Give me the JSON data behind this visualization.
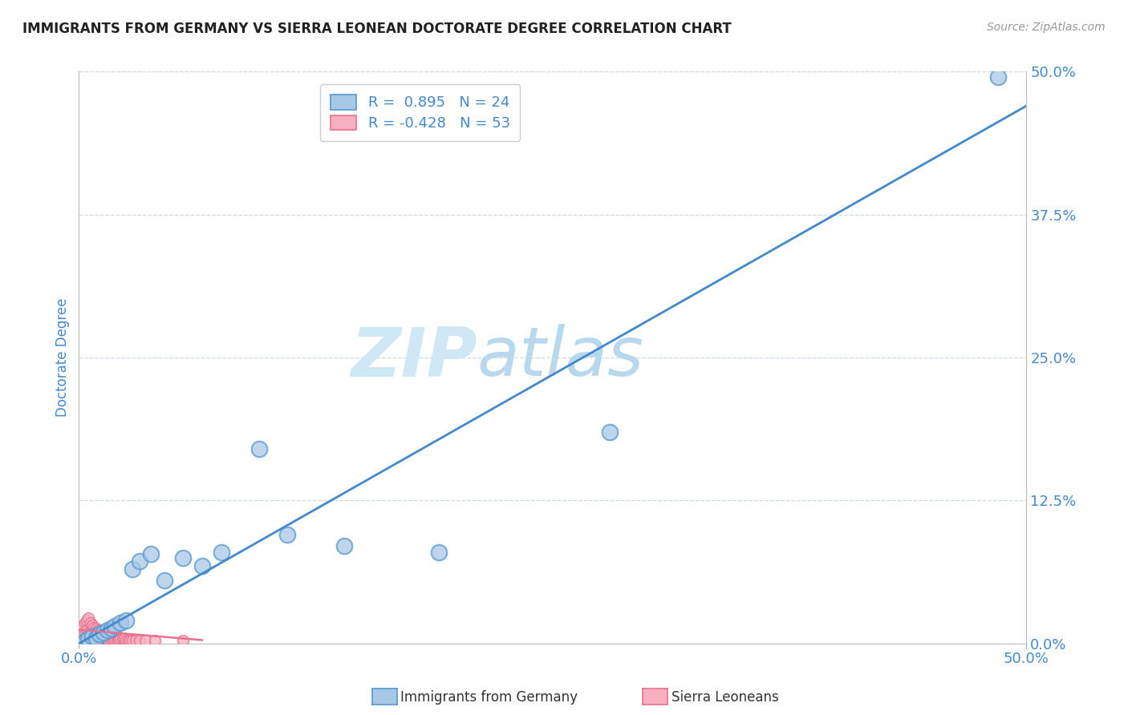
{
  "title": "IMMIGRANTS FROM GERMANY VS SIERRA LEONEAN DOCTORATE DEGREE CORRELATION CHART",
  "source": "Source: ZipAtlas.com",
  "ylabel": "Doctorate Degree",
  "xlim": [
    0.0,
    0.5
  ],
  "ylim": [
    0.0,
    0.5
  ],
  "xtick_positions": [
    0.0,
    0.5
  ],
  "xtick_labels": [
    "0.0%",
    "50.0%"
  ],
  "ytick_positions": [
    0.0,
    0.125,
    0.25,
    0.375,
    0.5
  ],
  "ytick_labels": [
    "0.0%",
    "12.5%",
    "25.0%",
    "37.5%",
    "50.0%"
  ],
  "blue_R": 0.895,
  "blue_N": 24,
  "pink_R": -0.428,
  "pink_N": 53,
  "blue_color": "#a8c8e8",
  "blue_edge_color": "#5599cc",
  "blue_line_color": "#4488cc",
  "pink_color": "#f8b0c0",
  "pink_edge_color": "#e87090",
  "pink_line_color": "#e87090",
  "legend_blue_label": "R =  0.895   N = 24",
  "legend_pink_label": "R = -0.428   N = 53",
  "blue_scatter_x": [
    0.003,
    0.005,
    0.007,
    0.009,
    0.011,
    0.013,
    0.015,
    0.017,
    0.019,
    0.022,
    0.025,
    0.028,
    0.032,
    0.038,
    0.045,
    0.055,
    0.065,
    0.075,
    0.095,
    0.11,
    0.14,
    0.19,
    0.28,
    0.485
  ],
  "blue_scatter_y": [
    0.002,
    0.004,
    0.006,
    0.005,
    0.008,
    0.01,
    0.012,
    0.013,
    0.015,
    0.018,
    0.02,
    0.065,
    0.072,
    0.078,
    0.055,
    0.075,
    0.068,
    0.08,
    0.17,
    0.095,
    0.085,
    0.08,
    0.185,
    0.495
  ],
  "pink_scatter_x": [
    0.001,
    0.002,
    0.002,
    0.003,
    0.003,
    0.004,
    0.004,
    0.005,
    0.005,
    0.006,
    0.006,
    0.007,
    0.007,
    0.008,
    0.008,
    0.009,
    0.009,
    0.01,
    0.01,
    0.011,
    0.011,
    0.012,
    0.012,
    0.013,
    0.013,
    0.014,
    0.014,
    0.015,
    0.015,
    0.016,
    0.016,
    0.017,
    0.017,
    0.018,
    0.018,
    0.019,
    0.019,
    0.02,
    0.02,
    0.021,
    0.021,
    0.022,
    0.023,
    0.024,
    0.025,
    0.026,
    0.027,
    0.028,
    0.03,
    0.032,
    0.035,
    0.04,
    0.055
  ],
  "pink_scatter_y": [
    0.012,
    0.015,
    0.008,
    0.018,
    0.01,
    0.02,
    0.012,
    0.022,
    0.009,
    0.018,
    0.01,
    0.016,
    0.008,
    0.014,
    0.007,
    0.013,
    0.006,
    0.012,
    0.005,
    0.011,
    0.006,
    0.01,
    0.005,
    0.009,
    0.004,
    0.008,
    0.004,
    0.007,
    0.004,
    0.007,
    0.003,
    0.006,
    0.003,
    0.006,
    0.003,
    0.005,
    0.003,
    0.005,
    0.003,
    0.005,
    0.003,
    0.004,
    0.004,
    0.004,
    0.003,
    0.003,
    0.003,
    0.003,
    0.003,
    0.003,
    0.003,
    0.003,
    0.003
  ],
  "blue_line_x": [
    0.0,
    0.5
  ],
  "blue_line_y": [
    0.0,
    0.47
  ],
  "pink_line_x": [
    0.0,
    0.065
  ],
  "pink_line_y": [
    0.012,
    0.003
  ],
  "watermark_text": "ZIPatlas",
  "watermark_color": "#c8dff0",
  "background_color": "#ffffff",
  "grid_color": "#d0d8e0",
  "grid_style": "--",
  "title_color": "#222222",
  "axis_label_color": "#4488cc",
  "tick_label_color": "#4488cc",
  "bottom_legend_blue": "Immigrants from Germany",
  "bottom_legend_pink": "Sierra Leoneans"
}
